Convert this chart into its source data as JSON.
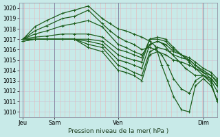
{
  "xlabel": "Pression niveau de la mer( hPa )",
  "ylim": [
    1009.5,
    1020.5
  ],
  "yticks": [
    1010,
    1011,
    1012,
    1013,
    1014,
    1015,
    1016,
    1017,
    1018,
    1019,
    1020
  ],
  "xlim": [
    0.0,
    1.0
  ],
  "xtick_positions": [
    0.02,
    0.18,
    0.5,
    0.93
  ],
  "xtick_labels": [
    "Jeu",
    "Sam",
    "Ven",
    "Dim"
  ],
  "bg_color": "#c8eae8",
  "grid_color_h": "#c8c8d8",
  "grid_color_v": "#e8b8b8",
  "line_color": "#1a5c1a",
  "line_width": 0.9,
  "marker_size": 2.5,
  "vline_positions": [
    0.02,
    0.18,
    0.5,
    0.93
  ],
  "vline_color": "#7a7a9a",
  "series": [
    {
      "x": [
        0.02,
        0.08,
        0.14,
        0.22,
        0.28,
        0.35,
        0.42,
        0.46,
        0.5,
        0.54,
        0.58,
        0.62,
        0.66,
        0.69,
        0.72,
        0.75,
        0.78,
        0.82,
        0.86,
        0.89,
        0.93,
        0.97,
        1.0
      ],
      "y": [
        1017.0,
        1018.2,
        1018.8,
        1019.5,
        1019.8,
        1020.2,
        1019.0,
        1018.5,
        1018.0,
        1017.8,
        1017.5,
        1017.2,
        1016.8,
        1016.3,
        1014.5,
        1013.0,
        1011.5,
        1010.2,
        1010.0,
        1012.5,
        1013.2,
        1012.5,
        1011.2
      ]
    },
    {
      "x": [
        0.02,
        0.08,
        0.14,
        0.22,
        0.28,
        0.35,
        0.42,
        0.46,
        0.5,
        0.54,
        0.58,
        0.62,
        0.66,
        0.69,
        0.72,
        0.75,
        0.78,
        0.82,
        0.86,
        0.89,
        0.93,
        0.97,
        1.0
      ],
      "y": [
        1017.0,
        1017.8,
        1018.3,
        1019.0,
        1019.2,
        1019.8,
        1018.5,
        1017.8,
        1017.2,
        1016.8,
        1016.5,
        1016.0,
        1016.2,
        1016.0,
        1015.5,
        1014.5,
        1013.2,
        1012.2,
        1011.8,
        1013.0,
        1013.5,
        1012.8,
        1011.0
      ]
    },
    {
      "x": [
        0.02,
        0.08,
        0.14,
        0.22,
        0.28,
        0.35,
        0.42,
        0.5,
        0.54,
        0.58,
        0.62,
        0.66,
        0.7,
        0.73,
        0.76,
        0.8,
        0.84,
        0.89,
        0.93,
        0.97,
        1.0
      ],
      "y": [
        1017.0,
        1017.5,
        1017.8,
        1018.3,
        1018.5,
        1018.8,
        1018.2,
        1016.5,
        1016.2,
        1015.8,
        1015.5,
        1016.5,
        1016.8,
        1016.5,
        1015.8,
        1015.0,
        1014.2,
        1013.5,
        1013.5,
        1013.0,
        1012.0
      ]
    },
    {
      "x": [
        0.02,
        0.08,
        0.14,
        0.22,
        0.28,
        0.35,
        0.42,
        0.5,
        0.54,
        0.58,
        0.62,
        0.66,
        0.7,
        0.74,
        0.78,
        0.82,
        0.86,
        0.89,
        0.93,
        0.97,
        1.0
      ],
      "y": [
        1017.0,
        1017.2,
        1017.3,
        1017.5,
        1017.5,
        1017.5,
        1017.2,
        1016.0,
        1015.8,
        1015.5,
        1015.2,
        1017.0,
        1017.2,
        1017.0,
        1016.2,
        1015.5,
        1014.8,
        1014.2,
        1013.8,
        1013.2,
        1012.5
      ]
    },
    {
      "x": [
        0.02,
        0.08,
        0.14,
        0.22,
        0.28,
        0.35,
        0.42,
        0.5,
        0.54,
        0.58,
        0.62,
        0.66,
        0.7,
        0.74,
        0.78,
        0.82,
        0.86,
        0.89,
        0.93,
        0.97,
        1.0
      ],
      "y": [
        1017.0,
        1017.0,
        1017.0,
        1017.0,
        1017.0,
        1017.0,
        1016.8,
        1015.5,
        1015.2,
        1015.0,
        1014.8,
        1017.0,
        1017.0,
        1016.8,
        1016.0,
        1015.5,
        1015.0,
        1014.5,
        1014.0,
        1013.5,
        1013.0
      ]
    },
    {
      "x": [
        0.02,
        0.08,
        0.14,
        0.22,
        0.28,
        0.35,
        0.42,
        0.5,
        0.54,
        0.58,
        0.62,
        0.66,
        0.7,
        0.74,
        0.78,
        0.82,
        0.86,
        0.89,
        0.93,
        0.97,
        1.0
      ],
      "y": [
        1017.0,
        1017.0,
        1017.0,
        1017.0,
        1017.0,
        1016.8,
        1016.5,
        1015.0,
        1014.8,
        1014.5,
        1014.2,
        1016.5,
        1016.8,
        1016.5,
        1015.8,
        1015.5,
        1015.2,
        1014.8,
        1014.2,
        1013.8,
        1013.2
      ]
    },
    {
      "x": [
        0.02,
        0.08,
        0.14,
        0.22,
        0.28,
        0.35,
        0.42,
        0.5,
        0.54,
        0.58,
        0.62,
        0.66,
        0.7,
        0.74,
        0.78,
        0.82,
        0.86,
        0.89,
        0.93,
        0.97,
        1.0
      ],
      "y": [
        1016.8,
        1017.0,
        1017.0,
        1017.0,
        1017.0,
        1016.5,
        1016.2,
        1014.5,
        1014.2,
        1013.8,
        1013.5,
        1015.8,
        1016.2,
        1016.0,
        1015.5,
        1015.2,
        1015.0,
        1014.5,
        1013.8,
        1013.5,
        1012.8
      ]
    },
    {
      "x": [
        0.02,
        0.08,
        0.14,
        0.22,
        0.28,
        0.35,
        0.42,
        0.5,
        0.54,
        0.58,
        0.62,
        0.66,
        0.7,
        0.74,
        0.78,
        0.82,
        0.86,
        0.89,
        0.93,
        0.97,
        1.0
      ],
      "y": [
        1016.8,
        1017.0,
        1017.0,
        1017.0,
        1017.0,
        1016.2,
        1015.8,
        1014.0,
        1013.8,
        1013.5,
        1013.0,
        1015.5,
        1015.8,
        1015.5,
        1015.0,
        1014.8,
        1014.5,
        1014.2,
        1013.5,
        1013.2,
        1012.5
      ]
    }
  ]
}
